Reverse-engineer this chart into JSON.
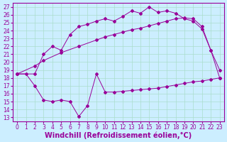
{
  "xlabel": "Windchill (Refroidissement éolien,°C)",
  "background_color": "#cceeff",
  "grid_color": "#aaddcc",
  "line_color": "#990099",
  "xlim": [
    -0.5,
    23.5
  ],
  "ylim": [
    12.5,
    27.5
  ],
  "xticks": [
    0,
    1,
    2,
    3,
    4,
    5,
    6,
    7,
    8,
    9,
    10,
    11,
    12,
    13,
    14,
    15,
    16,
    17,
    18,
    19,
    20,
    21,
    22,
    23
  ],
  "yticks": [
    13,
    14,
    15,
    16,
    17,
    18,
    19,
    20,
    21,
    22,
    23,
    24,
    25,
    26,
    27
  ],
  "line1_x": [
    0,
    1,
    2,
    3,
    4,
    5,
    6,
    7,
    8,
    9,
    10,
    11,
    12,
    13,
    14,
    15,
    16,
    17,
    18,
    19,
    20,
    21,
    22,
    23
  ],
  "line1_y": [
    18.5,
    18.5,
    17.0,
    15.2,
    15.0,
    15.2,
    15.0,
    13.1,
    14.5,
    18.5,
    16.2,
    16.2,
    16.3,
    16.4,
    16.5,
    16.6,
    16.7,
    16.9,
    17.1,
    17.3,
    17.5,
    17.6,
    17.8,
    18.0
  ],
  "line2_x": [
    0,
    2,
    3,
    5,
    7,
    9,
    10,
    11,
    12,
    13,
    14,
    15,
    16,
    17,
    18,
    19,
    20,
    21,
    22,
    23
  ],
  "line2_y": [
    18.5,
    19.5,
    20.2,
    21.2,
    22.0,
    22.8,
    23.2,
    23.5,
    23.8,
    24.1,
    24.3,
    24.6,
    24.9,
    25.2,
    25.5,
    25.6,
    25.5,
    24.5,
    21.5,
    18.0
  ],
  "line3_x": [
    0,
    2,
    3,
    4,
    5,
    6,
    7,
    8,
    9,
    10,
    11,
    12,
    13,
    14,
    15,
    16,
    17,
    18,
    19,
    20,
    21,
    22,
    23
  ],
  "line3_y": [
    18.5,
    18.5,
    21.0,
    22.0,
    21.5,
    23.5,
    24.5,
    24.8,
    25.2,
    25.5,
    25.2,
    25.8,
    26.5,
    26.2,
    27.0,
    26.3,
    26.5,
    26.2,
    25.5,
    25.2,
    24.2,
    21.5,
    19.0
  ],
  "tick_fontsize": 5.5,
  "xlabel_fontsize": 7
}
